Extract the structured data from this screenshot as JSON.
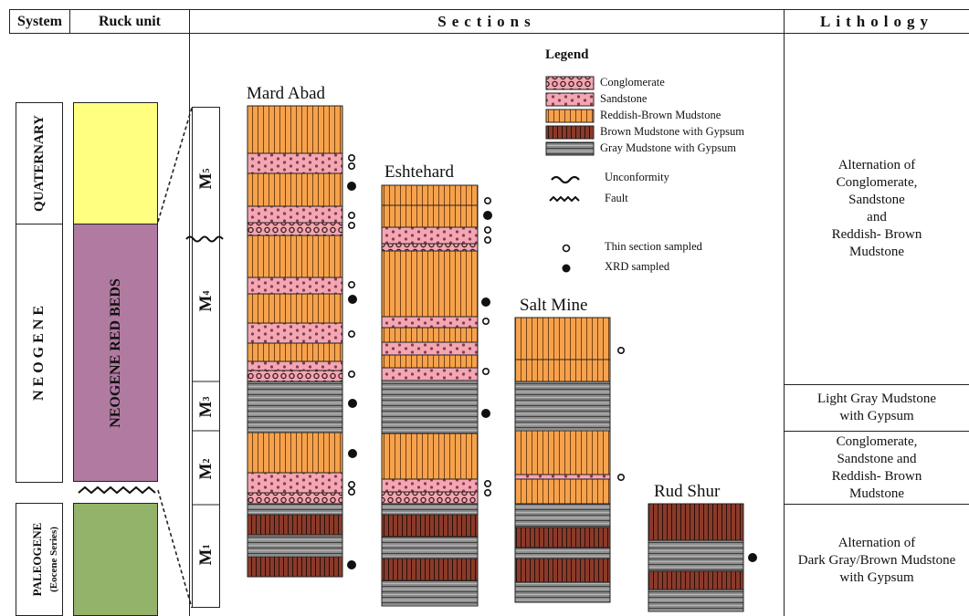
{
  "headers": {
    "system": "System",
    "rock_unit": "Ruck unit",
    "sections": "Sections",
    "lithology": "Lithology"
  },
  "systems": {
    "quaternary": "QUATERNARY",
    "neogene": "N E O G E N E",
    "paleogene": "PALEOGENE",
    "paleogene_sub": "(Eocene Series)"
  },
  "rock_units": {
    "red_beds": "NEOGENE RED BEDS"
  },
  "members": [
    "M",
    "M",
    "M",
    "M",
    "M"
  ],
  "member_subs": [
    "5",
    "4",
    "3",
    "2",
    "1"
  ],
  "sections": [
    "Mard Abad",
    "Eshtehard",
    "Salt Mine",
    "Rud Shur"
  ],
  "legend": {
    "title": "Legend",
    "items": [
      "Conglomerate",
      "Sandstone",
      "Reddish-Brown Mudstone",
      "Brown Mudstone with Gypsum",
      "Gray Mudstone with Gypsum"
    ],
    "symbols": [
      "Unconformity",
      "Fault"
    ],
    "samples": [
      "Thin section sampled",
      "XRD sampled"
    ]
  },
  "lithology": [
    [
      "Alternation of",
      "Conglomerate,",
      "Sandstone",
      "and",
      "Reddish- Brown",
      "Mudstone"
    ],
    [
      "Light Gray Mudstone",
      "with Gypsum"
    ],
    [
      "Conglomerate,",
      "Sandstone and",
      "Reddish- Brown",
      "Mudstone"
    ],
    [
      "Alternation of",
      "Dark Gray/Brown Mudstone",
      "with Gypsum"
    ]
  ],
  "colors": {
    "quaternary": "#ffff80",
    "red_beds": "#b07aa1",
    "paleogene": "#93b26a",
    "orange": "#f6a24c",
    "pink": "#f2a7b3",
    "gray": "#8c8c8c",
    "brown": "#8a3a2a"
  }
}
